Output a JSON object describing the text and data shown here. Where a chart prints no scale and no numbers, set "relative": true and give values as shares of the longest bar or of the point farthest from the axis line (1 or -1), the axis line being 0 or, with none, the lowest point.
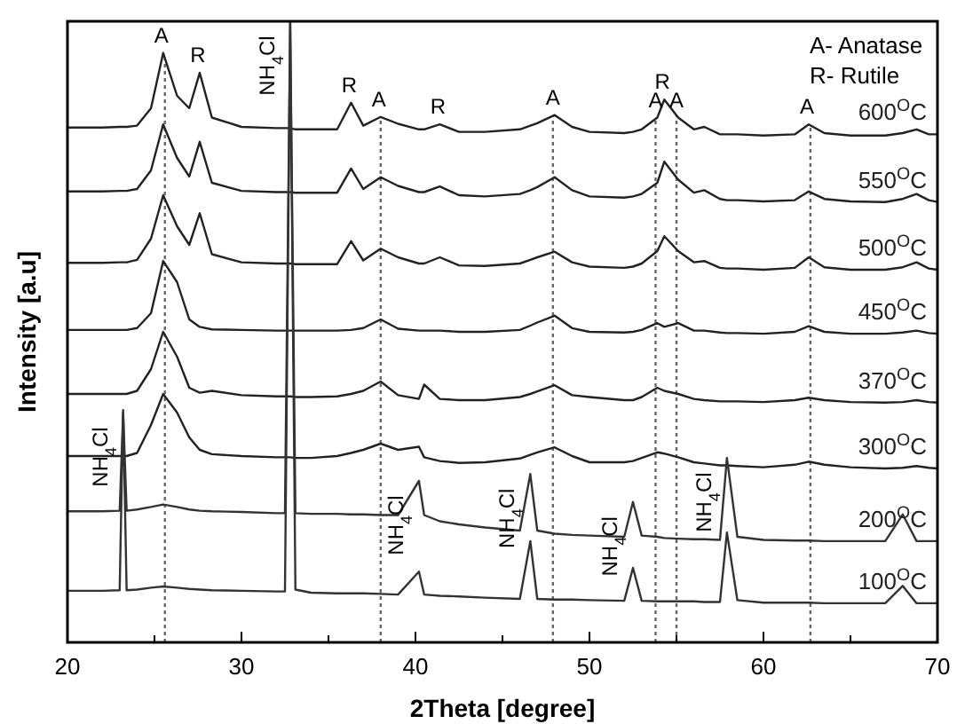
{
  "chart_data": {
    "type": "line",
    "relative": true,
    "xlabel": "2Theta [degree]",
    "ylabel": "Intensity [a.u]",
    "xlim": [
      20,
      70
    ],
    "xticks": [
      20,
      {
        "value": 25,
        "label": null
      },
      30,
      {
        "value": 35,
        "label": null
      },
      40,
      {
        "value": 45,
        "label": null
      },
      50,
      {
        "value": 55,
        "label": null
      },
      60,
      {
        "value": 65,
        "label": null
      },
      70
    ],
    "tick_labels": "x",
    "x": [
      20,
      22,
      23,
      23.2,
      23.4,
      24,
      24.8,
      25.5,
      26.3,
      27.0,
      27.6,
      28.3,
      30,
      32,
      32.5,
      32.8,
      33.1,
      34,
      35.5,
      36.3,
      37,
      38,
      39,
      40.2,
      40.5,
      41.4,
      42.5,
      44,
      46,
      46.6,
      47,
      48,
      49,
      50,
      52,
      52.5,
      53,
      53.9,
      54.3,
      55.1,
      56,
      56.6,
      57.5,
      57.9,
      58.5,
      60,
      61.8,
      62.6,
      63.5,
      65,
      67,
      68,
      68.8,
      69.5,
      70
    ],
    "series": [
      {
        "name": "600$^{O}$C",
        "color": "#222222",
        "values": [
          0.829,
          0.829,
          0.83,
          0.83,
          0.83,
          0.832,
          0.86,
          0.949,
          0.88,
          0.86,
          0.917,
          0.845,
          0.83,
          0.828,
          0.828,
          0.828,
          0.826,
          0.826,
          0.826,
          0.869,
          0.832,
          0.846,
          0.835,
          0.826,
          0.826,
          0.834,
          0.822,
          0.822,
          0.826,
          0.832,
          0.836,
          0.849,
          0.83,
          0.822,
          0.82,
          0.822,
          0.826,
          0.845,
          0.874,
          0.845,
          0.826,
          0.83,
          0.818,
          0.818,
          0.818,
          0.816,
          0.818,
          0.834,
          0.82,
          0.816,
          0.816,
          0.82,
          0.826,
          0.818,
          0.818
        ]
      },
      {
        "name": "550$^{O}$C",
        "color": "#222222",
        "values": [
          0.726,
          0.726,
          0.727,
          0.727,
          0.727,
          0.73,
          0.76,
          0.834,
          0.78,
          0.75,
          0.806,
          0.74,
          0.727,
          0.725,
          0.725,
          0.725,
          0.724,
          0.724,
          0.724,
          0.763,
          0.73,
          0.749,
          0.735,
          0.725,
          0.725,
          0.734,
          0.72,
          0.718,
          0.722,
          0.728,
          0.733,
          0.749,
          0.728,
          0.718,
          0.716,
          0.718,
          0.722,
          0.74,
          0.774,
          0.745,
          0.724,
          0.728,
          0.714,
          0.712,
          0.712,
          0.71,
          0.712,
          0.726,
          0.714,
          0.71,
          0.709,
          0.714,
          0.722,
          0.712,
          0.709
        ]
      },
      {
        "name": "500$^{O}$C",
        "color": "#222222",
        "values": [
          0.611,
          0.611,
          0.612,
          0.612,
          0.612,
          0.616,
          0.65,
          0.72,
          0.67,
          0.64,
          0.691,
          0.625,
          0.612,
          0.61,
          0.61,
          0.61,
          0.609,
          0.609,
          0.609,
          0.646,
          0.615,
          0.634,
          0.62,
          0.61,
          0.61,
          0.62,
          0.607,
          0.606,
          0.61,
          0.616,
          0.62,
          0.629,
          0.612,
          0.605,
          0.603,
          0.605,
          0.61,
          0.63,
          0.654,
          0.63,
          0.612,
          0.614,
          0.603,
          0.602,
          0.602,
          0.6,
          0.603,
          0.62,
          0.604,
          0.6,
          0.6,
          0.604,
          0.612,
          0.602,
          0.6
        ]
      },
      {
        "name": "450$^{O}$C",
        "color": "#222222",
        "values": [
          0.503,
          0.503,
          0.503,
          0.503,
          0.503,
          0.506,
          0.53,
          0.614,
          0.58,
          0.52,
          0.508,
          0.504,
          0.503,
          0.502,
          0.502,
          0.502,
          0.502,
          0.502,
          0.502,
          0.503,
          0.506,
          0.52,
          0.505,
          0.502,
          0.502,
          0.502,
          0.5,
          0.5,
          0.503,
          0.51,
          0.515,
          0.526,
          0.506,
          0.5,
          0.499,
          0.5,
          0.503,
          0.514,
          0.508,
          0.514,
          0.502,
          0.502,
          0.499,
          0.498,
          0.498,
          0.497,
          0.5,
          0.509,
          0.5,
          0.497,
          0.497,
          0.499,
          0.502,
          0.498,
          0.497
        ]
      },
      {
        "name": "370$^{O}$C",
        "color": "#222222",
        "values": [
          0.4,
          0.4,
          0.4,
          0.4,
          0.4,
          0.405,
          0.44,
          0.5,
          0.46,
          0.41,
          0.402,
          0.405,
          0.398,
          0.396,
          0.396,
          0.396,
          0.395,
          0.395,
          0.396,
          0.4,
          0.405,
          0.42,
          0.398,
          0.392,
          0.415,
          0.392,
          0.39,
          0.39,
          0.395,
          0.4,
          0.404,
          0.414,
          0.398,
          0.395,
          0.39,
          0.39,
          0.395,
          0.41,
          0.405,
          0.4,
          0.392,
          0.39,
          0.388,
          0.388,
          0.388,
          0.387,
          0.39,
          0.394,
          0.39,
          0.387,
          0.386,
          0.387,
          0.39,
          0.387,
          0.386
        ]
      },
      {
        "name": "300$^{O}$C",
        "color": "#222222",
        "values": [
          0.3,
          0.3,
          0.3,
          0.3,
          0.3,
          0.305,
          0.35,
          0.4,
          0.37,
          0.33,
          0.31,
          0.303,
          0.3,
          0.298,
          0.298,
          0.298,
          0.297,
          0.297,
          0.3,
          0.305,
          0.31,
          0.32,
          0.31,
          0.315,
          0.298,
          0.292,
          0.289,
          0.29,
          0.296,
          0.302,
          0.306,
          0.314,
          0.3,
          0.29,
          0.29,
          0.292,
          0.297,
          0.306,
          0.304,
          0.298,
          0.29,
          0.288,
          0.285,
          0.285,
          0.284,
          0.282,
          0.286,
          0.291,
          0.286,
          0.282,
          0.28,
          0.281,
          0.284,
          0.281,
          0.28
        ]
      },
      {
        "name": "200$^{O}$C",
        "color": "#333333",
        "values": [
          0.211,
          0.211,
          0.212,
          0.37,
          0.212,
          0.214,
          0.218,
          0.222,
          0.218,
          0.214,
          0.212,
          0.211,
          0.21,
          0.208,
          0.208,
          1.0,
          0.208,
          0.207,
          0.207,
          0.206,
          0.206,
          0.205,
          0.205,
          0.26,
          0.205,
          0.195,
          0.19,
          0.185,
          0.18,
          0.271,
          0.18,
          0.175,
          0.173,
          0.172,
          0.17,
          0.226,
          0.172,
          0.17,
          0.168,
          0.167,
          0.166,
          0.166,
          0.165,
          0.297,
          0.17,
          0.165,
          0.164,
          0.164,
          0.163,
          0.163,
          0.163,
          0.206,
          0.163,
          0.163,
          0.163
        ]
      },
      {
        "name": "100$^{O}$C",
        "color": "#333333",
        "values": [
          0.083,
          0.083,
          0.084,
          0.374,
          0.084,
          0.085,
          0.088,
          0.09,
          0.088,
          0.086,
          0.085,
          0.084,
          0.083,
          0.082,
          0.082,
          1.0,
          0.085,
          0.08,
          0.079,
          0.079,
          0.079,
          0.078,
          0.077,
          0.114,
          0.077,
          0.075,
          0.074,
          0.072,
          0.07,
          0.163,
          0.07,
          0.069,
          0.069,
          0.068,
          0.067,
          0.12,
          0.067,
          0.066,
          0.066,
          0.066,
          0.066,
          0.065,
          0.065,
          0.177,
          0.068,
          0.064,
          0.064,
          0.064,
          0.063,
          0.063,
          0.063,
          0.091,
          0.063,
          0.063,
          0.063
        ]
      }
    ],
    "ref_lines": [
      {
        "axis": "x",
        "value": 25.6,
        "color": "#666666",
        "line_style": "dotted"
      },
      {
        "axis": "x",
        "value": 38.0,
        "color": "#666666",
        "line_style": "dotted"
      },
      {
        "axis": "x",
        "value": 47.9,
        "color": "#666666",
        "line_style": "dotted"
      },
      {
        "axis": "x",
        "value": 53.8,
        "color": "#666666",
        "line_style": "dotted"
      },
      {
        "axis": "x",
        "value": 55.0,
        "color": "#666666",
        "line_style": "dotted"
      },
      {
        "axis": "x",
        "value": 62.7,
        "color": "#666666",
        "line_style": "dotted"
      }
    ],
    "annotations": [
      "A- Anatase",
      "R- Rutile",
      {
        "text": "A",
        "x": 25.5,
        "y": 0.949
      },
      {
        "text": "R",
        "x": 27.6,
        "y": 0.917
      },
      {
        "text": "R",
        "x": 36.3,
        "y": 0.869
      },
      {
        "text": "A",
        "x": 38,
        "y": 0.846
      },
      {
        "text": "R",
        "x": 41.4,
        "y": 0.834
      },
      {
        "text": "A",
        "x": 48,
        "y": 0.849
      },
      {
        "text": "A",
        "x": 53.9,
        "y": 0.845
      },
      {
        "text": "R",
        "x": 54.3,
        "y": 0.874
      },
      {
        "text": "A",
        "x": 55.1,
        "y": 0.845
      },
      {
        "text": "A",
        "x": 62.6,
        "y": 0.834
      },
      {
        "text": "NH$_{4}$Cl",
        "x": 32.8,
        "y": 1.0
      },
      {
        "text": "NH$_{4}$Cl",
        "x": 23.2,
        "y": 0.37
      },
      {
        "text": "NH$_{4}$Cl",
        "x": 40.2,
        "y": 0.26
      },
      {
        "text": "NH$_{4}$Cl",
        "x": 46.6,
        "y": 0.271
      },
      {
        "text": "NH$_{4}$Cl",
        "x": 52.5,
        "y": 0.226
      },
      {
        "text": "NH$_{4}$Cl",
        "x": 57.9,
        "y": 0.297
      }
    ]
  }
}
